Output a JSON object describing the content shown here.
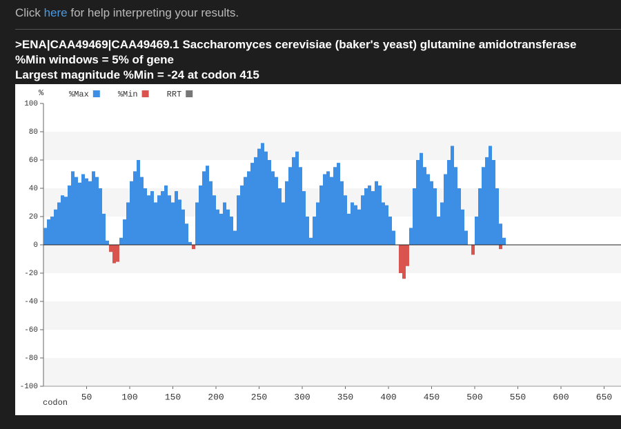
{
  "help": {
    "before": "Click",
    "link": "here",
    "after": "for help interpreting your results."
  },
  "result": {
    "sequence": ">ENA|CAA49469|CAA49469.1 Saccharomyces cerevisiae (baker's yeast) glutamine amidotransferase",
    "windows": "%Min windows = 5% of gene",
    "largest": "Largest magnitude %Min = -24 at codon 415"
  },
  "chart_data": {
    "type": "bar",
    "xlabel": "codon",
    "ylabel": "%",
    "legend": "top-left",
    "x": [
      2,
      6,
      10,
      14,
      18,
      22,
      26,
      30,
      34,
      38,
      42,
      46,
      50,
      54,
      58,
      62,
      66,
      70,
      74,
      78,
      82,
      86,
      90,
      94,
      98,
      102,
      106,
      110,
      114,
      118,
      122,
      126,
      130,
      134,
      138,
      142,
      146,
      150,
      154,
      158,
      162,
      166,
      170,
      174,
      178,
      182,
      186,
      190,
      194,
      198,
      202,
      206,
      210,
      214,
      218,
      222,
      226,
      230,
      234,
      238,
      242,
      246,
      250,
      254,
      258,
      262,
      266,
      270,
      274,
      278,
      282,
      286,
      290,
      294,
      298,
      302,
      306,
      310,
      314,
      318,
      322,
      326,
      330,
      334,
      338,
      342,
      346,
      350,
      354,
      358,
      362,
      366,
      370,
      374,
      378,
      382,
      386,
      390,
      394,
      398,
      402,
      406,
      410,
      414,
      418,
      422,
      426,
      430,
      434,
      438,
      442,
      446,
      450,
      454,
      458,
      462,
      466,
      470,
      474,
      478,
      482,
      486,
      490,
      494,
      498,
      502,
      506,
      510,
      514,
      518,
      522,
      526,
      530,
      534
    ],
    "series": [
      {
        "name": "%Max",
        "color": "#3d8fe6",
        "values": [
          12,
          18,
          20,
          25,
          30,
          35,
          34,
          42,
          52,
          48,
          44,
          50,
          47,
          45,
          52,
          48,
          40,
          22,
          3,
          0,
          0,
          0,
          5,
          18,
          30,
          45,
          52,
          60,
          48,
          40,
          35,
          38,
          30,
          35,
          38,
          42,
          35,
          30,
          38,
          32,
          25,
          15,
          2,
          0,
          30,
          42,
          52,
          56,
          45,
          35,
          25,
          22,
          30,
          25,
          20,
          10,
          35,
          42,
          48,
          52,
          58,
          62,
          68,
          72,
          66,
          60,
          52,
          48,
          40,
          30,
          45,
          55,
          62,
          66,
          55,
          38,
          20,
          5,
          20,
          30,
          42,
          50,
          52,
          48,
          55,
          58,
          45,
          35,
          22,
          30,
          28,
          25,
          35,
          40,
          42,
          38,
          45,
          42,
          30,
          28,
          20,
          10,
          0,
          0,
          0,
          0,
          12,
          40,
          60,
          65,
          55,
          50,
          45,
          40,
          20,
          30,
          50,
          60,
          70,
          55,
          40,
          25,
          10,
          0,
          0,
          20,
          40,
          55,
          62,
          70,
          60,
          40,
          15,
          5
        ]
      },
      {
        "name": "%Min",
        "color": "#d9534f",
        "values": [
          0,
          0,
          0,
          0,
          0,
          0,
          0,
          0,
          0,
          0,
          0,
          0,
          0,
          0,
          0,
          0,
          0,
          0,
          0,
          -5,
          -13,
          -12,
          0,
          0,
          0,
          0,
          0,
          0,
          0,
          0,
          0,
          0,
          0,
          0,
          0,
          0,
          0,
          0,
          0,
          0,
          0,
          0,
          0,
          -3,
          0,
          0,
          0,
          0,
          0,
          0,
          0,
          0,
          0,
          0,
          0,
          0,
          0,
          0,
          0,
          0,
          0,
          0,
          0,
          0,
          0,
          0,
          0,
          0,
          0,
          0,
          0,
          0,
          0,
          0,
          0,
          0,
          0,
          0,
          0,
          0,
          0,
          0,
          0,
          0,
          0,
          0,
          0,
          0,
          0,
          0,
          0,
          0,
          0,
          0,
          0,
          0,
          0,
          0,
          0,
          0,
          0,
          0,
          0,
          -20,
          -24,
          -15,
          0,
          0,
          0,
          0,
          0,
          0,
          0,
          0,
          0,
          0,
          0,
          0,
          0,
          0,
          0,
          0,
          0,
          0,
          -7,
          0,
          0,
          0,
          0,
          0,
          0,
          0,
          -3,
          0
        ]
      },
      {
        "name": "RRT",
        "color": "#777777",
        "values": [
          null,
          null,
          null,
          null,
          null,
          null,
          null,
          null,
          null,
          null,
          null,
          null,
          null,
          null,
          null,
          null,
          null,
          null,
          null,
          null,
          null,
          null,
          null,
          null,
          null,
          null,
          null,
          null,
          null,
          null,
          null,
          null,
          null,
          null,
          null,
          null,
          null,
          null,
          null,
          null,
          null,
          null,
          null,
          null,
          null,
          null,
          null,
          null,
          null,
          null,
          null,
          null,
          null,
          null,
          null,
          null,
          null,
          null,
          null,
          null,
          null,
          null,
          null,
          null,
          null,
          null,
          null,
          null,
          null,
          null,
          null,
          null,
          null,
          null,
          null,
          null,
          null,
          null,
          null,
          null,
          null,
          null,
          null,
          null,
          null,
          null,
          null,
          null,
          null,
          null,
          null,
          null,
          null,
          null,
          null,
          null,
          null,
          null,
          null,
          null,
          null,
          null,
          null,
          null,
          null,
          null,
          null,
          null,
          null,
          null,
          null,
          null,
          null,
          null,
          null,
          null,
          null,
          null,
          null,
          null,
          null,
          null,
          null,
          null,
          null,
          null,
          null,
          null,
          null,
          null,
          null,
          null,
          null,
          null
        ]
      }
    ],
    "xlim": [
      0,
      670
    ],
    "ylim": [
      -100,
      100
    ],
    "xticks": [
      50,
      100,
      150,
      200,
      250,
      300,
      350,
      400,
      450,
      500,
      550,
      600,
      650
    ],
    "yticks": [
      -100,
      -80,
      -60,
      -40,
      -20,
      0,
      20,
      40,
      60,
      80,
      100
    ],
    "bands": true
  }
}
